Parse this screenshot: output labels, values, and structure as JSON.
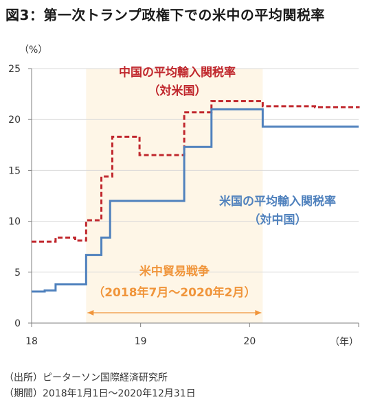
{
  "title": "図3：第一次トランプ政権下での米中の平均関税率",
  "source_lines": [
    "（出所）ピーターソン国際経済研究所",
    "（期間）2018年1月1日～2020年12月31日"
  ],
  "chart_data": {
    "type": "line",
    "step": true,
    "xlabel": "（年）",
    "ylabel": "（%）",
    "xlim": [
      2018.0,
      2021.0
    ],
    "ylim": [
      0,
      25
    ],
    "x_ticks": [
      2018,
      2019,
      2020
    ],
    "x_tick_labels": [
      "18",
      "19",
      "20"
    ],
    "y_ticks": [
      0,
      5,
      10,
      15,
      20,
      25
    ],
    "y_tick_labels": [
      "0",
      "5",
      "10",
      "15",
      "20",
      "25"
    ],
    "grid": "horizontal",
    "series": [
      {
        "name": "中国の平均輸入関税率（対米国）",
        "name_lines": [
          "中国の平均輸入関税率",
          "（対米国）"
        ],
        "color": "#C0272D",
        "style": "dashed",
        "x": [
          2018.0,
          2018.22,
          2018.4,
          2018.5,
          2018.64,
          2018.74,
          2018.99,
          2019.4,
          2019.65,
          2020.12,
          2020.6,
          2021.0
        ],
        "y": [
          8.0,
          8.4,
          8.1,
          10.1,
          14.4,
          18.3,
          16.5,
          20.7,
          21.8,
          21.3,
          21.2,
          21.1
        ]
      },
      {
        "name": "米国の平均輸入関税率（対中国）",
        "name_lines": [
          "米国の平均輸入関税率",
          "（対中国）"
        ],
        "color": "#4F81BD",
        "style": "solid",
        "x": [
          2018.0,
          2018.12,
          2018.22,
          2018.5,
          2018.64,
          2018.72,
          2019.4,
          2019.65,
          2020.12,
          2021.0
        ],
        "y": [
          3.1,
          3.2,
          3.8,
          6.7,
          8.4,
          12.0,
          17.3,
          21.0,
          19.3,
          19.3
        ]
      }
    ],
    "shaded_region": {
      "x": [
        2018.5,
        2020.12
      ],
      "color": "#FEF6E7",
      "label_lines": [
        "米中貿易戦争",
        "（2018年7月～2020年2月）"
      ],
      "label_color": "#F0953B"
    }
  }
}
